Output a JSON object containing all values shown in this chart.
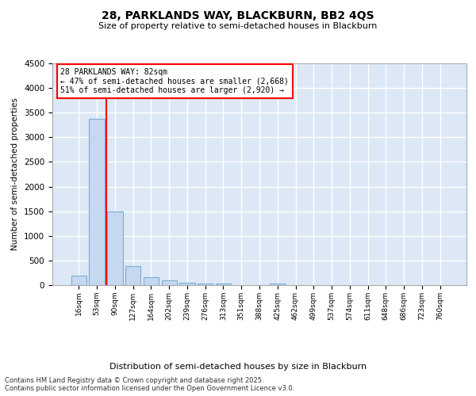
{
  "title1": "28, PARKLANDS WAY, BLACKBURN, BB2 4QS",
  "title2": "Size of property relative to semi-detached houses in Blackburn",
  "xlabel": "Distribution of semi-detached houses by size in Blackburn",
  "ylabel": "Number of semi-detached properties",
  "categories": [
    "16sqm",
    "53sqm",
    "90sqm",
    "127sqm",
    "164sqm",
    "202sqm",
    "239sqm",
    "276sqm",
    "313sqm",
    "351sqm",
    "388sqm",
    "425sqm",
    "462sqm",
    "499sqm",
    "537sqm",
    "574sqm",
    "611sqm",
    "648sqm",
    "686sqm",
    "723sqm",
    "760sqm"
  ],
  "values": [
    200,
    3380,
    1500,
    390,
    155,
    90,
    50,
    35,
    25,
    0,
    0,
    30,
    0,
    0,
    0,
    0,
    0,
    0,
    0,
    0,
    0
  ],
  "bar_color": "#c5d8f0",
  "bar_edge_color": "#7aadd4",
  "red_line_x": 2,
  "red_line_label": "28 PARKLANDS WAY: 82sqm",
  "annotation_line1": "← 47% of semi-detached houses are smaller (2,668)",
  "annotation_line2": "51% of semi-detached houses are larger (2,920) →",
  "ylim": [
    0,
    4500
  ],
  "yticks": [
    0,
    500,
    1000,
    1500,
    2000,
    2500,
    3000,
    3500,
    4000,
    4500
  ],
  "background_color": "#dce8f5",
  "grid_color": "#ffffff",
  "footer1": "Contains HM Land Registry data © Crown copyright and database right 2025.",
  "footer2": "Contains public sector information licensed under the Open Government Licence v3.0."
}
